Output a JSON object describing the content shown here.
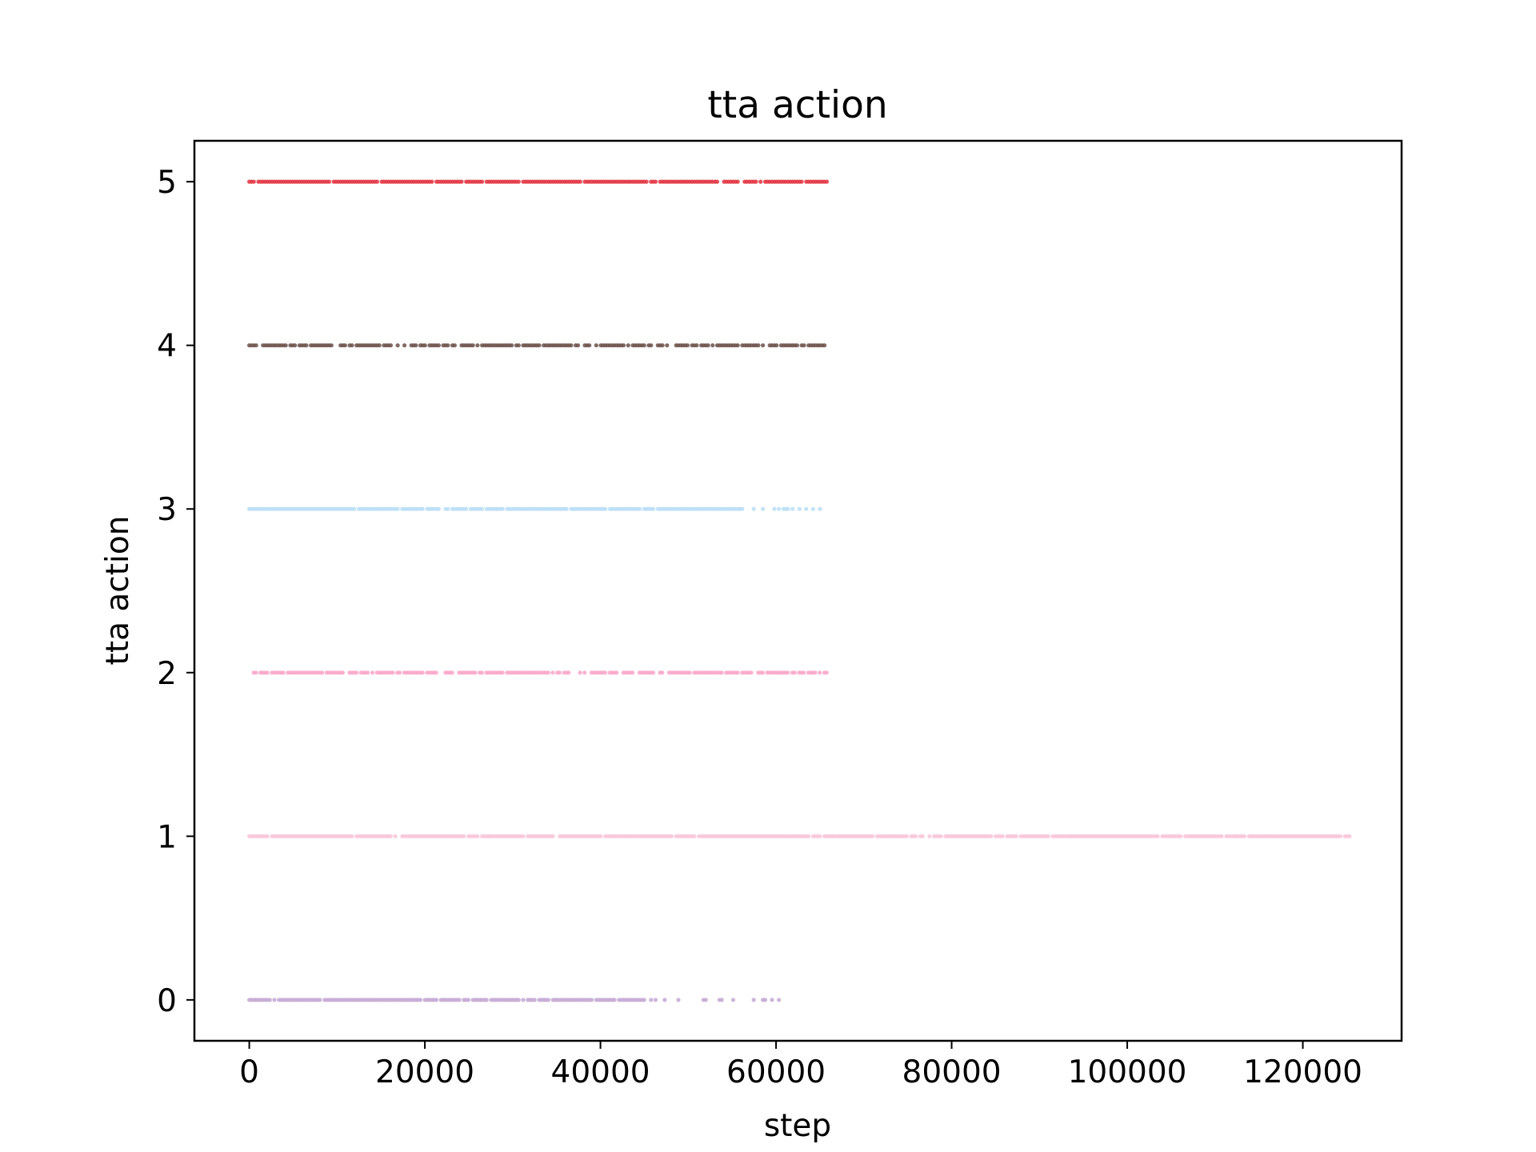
{
  "chart_data": {
    "type": "scatter",
    "title": "tta action",
    "xlabel": "step",
    "ylabel": "tta action",
    "xlim": [
      -6250,
      131250
    ],
    "ylim": [
      -0.25,
      5.25
    ],
    "xticks": [
      0,
      20000,
      40000,
      60000,
      80000,
      100000,
      120000
    ],
    "xtick_labels": [
      "0",
      "20000",
      "40000",
      "60000",
      "80000",
      "100000",
      "120000"
    ],
    "yticks": [
      0,
      1,
      2,
      3,
      4,
      5
    ],
    "ytick_labels": [
      "0",
      "1",
      "2",
      "3",
      "4",
      "5"
    ],
    "grid": false,
    "legend": "none",
    "series": [
      {
        "y": 5,
        "color": "#e2343f",
        "x_start": 0,
        "x_end": 66000,
        "density": "dense"
      },
      {
        "y": 4,
        "color": "#6b5048",
        "x_start": 0,
        "x_end": 66000,
        "density": "medium"
      },
      {
        "y": 3,
        "color": "#b9def6",
        "x_start": 0,
        "x_end": 65000,
        "density": "dense, sparse after ~55000"
      },
      {
        "y": 2,
        "color": "#f9a6c8",
        "x_start": 500,
        "x_end": 66000,
        "density": "medium"
      },
      {
        "y": 1,
        "color": "#f8c5d8",
        "x_start": 0,
        "x_end": 125500,
        "density": "dense"
      },
      {
        "y": 0,
        "color": "#c4a8d4",
        "x_start": 0,
        "x_end": 60500,
        "density": "dense, sparse after ~45000"
      }
    ]
  }
}
